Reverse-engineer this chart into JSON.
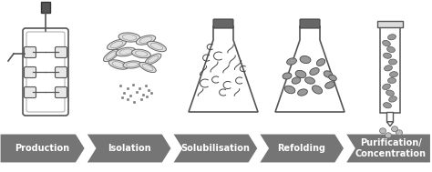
{
  "steps": [
    "Production",
    "Isolation",
    "Solubilisation",
    "Refolding",
    "Purification/\nConcentration"
  ],
  "arrow_color": "#757575",
  "text_color": "#ffffff",
  "bg_color": "#ffffff",
  "font_size": 7.0,
  "fig_width": 4.74,
  "fig_height": 1.89,
  "line_color": "#555555",
  "fill_light": "#e8e8e8",
  "fill_med": "#aaaaaa",
  "fill_dark": "#888888"
}
